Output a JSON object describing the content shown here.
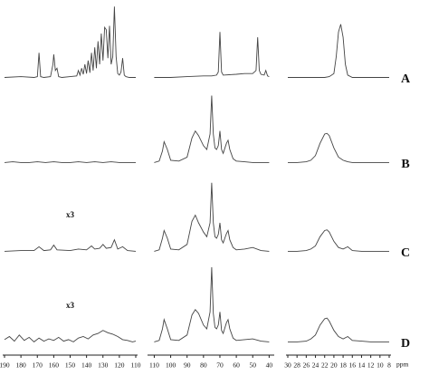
{
  "chart_data": [
    {
      "type": "line",
      "xlim": [
        190,
        110
      ],
      "xticks": [
        190,
        180,
        170,
        160,
        150,
        140,
        130,
        120,
        110
      ],
      "ylim": [
        0,
        100
      ],
      "color": "#444",
      "annotations": [
        {
          "text": "x3",
          "series": 2
        },
        {
          "text": "x3",
          "series": 3
        }
      ],
      "series": [
        {
          "x": [
            190,
            180,
            172,
            170,
            169,
            168,
            166,
            162,
            160.5,
            160,
            159,
            158,
            157,
            155,
            150,
            146,
            145,
            144,
            143,
            142,
            141,
            140,
            139,
            138,
            137,
            136,
            135,
            134,
            133,
            132,
            131,
            130,
            129,
            128,
            127,
            126,
            125,
            124,
            123,
            122,
            121,
            120,
            119,
            118,
            117,
            116,
            114,
            110
          ],
          "values": [
            3,
            4,
            3,
            4,
            35,
            4,
            3,
            4,
            20,
            33,
            12,
            15,
            4,
            3,
            4,
            5,
            12,
            6,
            15,
            7,
            20,
            8,
            25,
            9,
            35,
            12,
            42,
            15,
            50,
            20,
            60,
            25,
            68,
            65,
            28,
            70,
            20,
            30,
            95,
            30,
            8,
            6,
            10,
            28,
            6,
            4,
            3,
            3
          ]
        },
        {
          "x": [
            190,
            185,
            180,
            175,
            170,
            165,
            160,
            155,
            150,
            145,
            140,
            135,
            130,
            125,
            120,
            115,
            110
          ],
          "values": [
            3,
            4,
            3,
            3,
            4,
            3,
            4,
            3,
            3,
            4,
            3,
            4,
            3,
            4,
            3,
            3,
            3
          ]
        },
        {
          "x": [
            190,
            180,
            172,
            169,
            166,
            162,
            160,
            158,
            150,
            145,
            140,
            137,
            135,
            132,
            130,
            128,
            125,
            123,
            121,
            118,
            115,
            110
          ],
          "values": [
            3,
            4,
            4,
            9,
            4,
            5,
            11,
            5,
            4,
            6,
            5,
            10,
            6,
            7,
            12,
            7,
            8,
            18,
            6,
            9,
            4,
            3
          ]
        },
        {
          "x": [
            190,
            187,
            184,
            181,
            178,
            175,
            172,
            169,
            166,
            163,
            160,
            157,
            154,
            151,
            148,
            145,
            142,
            139,
            136,
            133,
            130,
            127,
            124,
            121,
            118,
            115,
            112,
            110
          ],
          "values": [
            6,
            10,
            4,
            12,
            5,
            9,
            3,
            8,
            4,
            7,
            5,
            9,
            4,
            6,
            3,
            8,
            10,
            7,
            12,
            14,
            18,
            15,
            13,
            10,
            6,
            5,
            3,
            4
          ]
        }
      ]
    },
    {
      "type": "line",
      "xlim": [
        113,
        38
      ],
      "xticks": [
        110,
        100,
        90,
        80,
        70,
        60,
        50,
        40
      ],
      "ylim": [
        0,
        100
      ],
      "color": "#444",
      "series": [
        {
          "x": [
            110,
            100,
            90,
            80,
            75,
            72,
            71,
            70,
            69,
            68,
            60,
            55,
            50,
            48,
            47,
            46,
            45,
            43,
            42,
            41,
            40
          ],
          "values": [
            3,
            3,
            4,
            5,
            5,
            6,
            10,
            62,
            10,
            6,
            7,
            8,
            8,
            12,
            55,
            12,
            7,
            6,
            12,
            5,
            4
          ]
        },
        {
          "x": [
            110,
            107,
            105,
            104,
            102,
            100,
            95,
            90,
            87,
            85,
            83,
            80,
            78,
            76,
            75,
            74,
            73,
            72,
            71,
            70,
            69,
            68,
            66,
            65,
            64,
            62,
            60,
            55,
            50,
            45,
            40
          ],
          "values": [
            3,
            5,
            18,
            30,
            20,
            6,
            5,
            10,
            35,
            44,
            38,
            25,
            20,
            40,
            90,
            40,
            22,
            20,
            25,
            44,
            20,
            15,
            28,
            32,
            20,
            8,
            5,
            4,
            3,
            3,
            3
          ]
        },
        {
          "x": [
            110,
            107,
            105,
            104,
            102,
            100,
            95,
            90,
            87,
            85,
            83,
            80,
            78,
            76,
            75,
            74,
            73,
            72,
            71,
            70,
            69,
            68,
            66,
            65,
            64,
            62,
            60,
            55,
            50,
            45,
            40
          ],
          "values": [
            3,
            5,
            20,
            30,
            20,
            6,
            5,
            12,
            42,
            50,
            40,
            28,
            22,
            40,
            92,
            40,
            22,
            20,
            25,
            40,
            18,
            14,
            26,
            30,
            18,
            8,
            5,
            6,
            8,
            4,
            3
          ]
        },
        {
          "x": [
            110,
            107,
            105,
            104,
            102,
            100,
            95,
            90,
            87,
            85,
            83,
            80,
            78,
            76,
            75,
            74,
            73,
            72,
            71,
            70,
            69,
            68,
            66,
            65,
            64,
            62,
            60,
            55,
            50,
            45,
            40
          ],
          "values": [
            3,
            5,
            20,
            32,
            20,
            6,
            5,
            12,
            38,
            45,
            40,
            25,
            20,
            42,
            100,
            40,
            22,
            20,
            25,
            42,
            18,
            14,
            28,
            32,
            20,
            8,
            5,
            6,
            7,
            4,
            3
          ]
        }
      ]
    },
    {
      "type": "line",
      "xlim": [
        30,
        8
      ],
      "xticks": [
        30,
        28,
        26,
        24,
        22,
        20,
        18,
        16,
        14,
        12,
        10,
        8
      ],
      "xlabel": "ppm",
      "ylim": [
        0,
        100
      ],
      "color": "#444",
      "series": [
        {
          "x": [
            30,
            28,
            26,
            24,
            22,
            21,
            20,
            19.5,
            19,
            18.5,
            18,
            17.5,
            17,
            16,
            14,
            12,
            10,
            8
          ],
          "values": [
            3,
            3,
            3,
            3,
            3,
            4,
            8,
            30,
            62,
            72,
            55,
            20,
            6,
            3,
            3,
            3,
            3,
            3
          ]
        },
        {
          "x": [
            30,
            28,
            26,
            25,
            24,
            23,
            22,
            21.5,
            21,
            20,
            19,
            18,
            17,
            16,
            14,
            12,
            10,
            8
          ],
          "values": [
            3,
            3,
            4,
            6,
            12,
            28,
            40,
            41,
            38,
            22,
            10,
            6,
            4,
            3,
            3,
            3,
            3,
            3
          ]
        },
        {
          "x": [
            30,
            28,
            26,
            25,
            24,
            23,
            22,
            21.5,
            21,
            20,
            19,
            18,
            17,
            16,
            14,
            12,
            10,
            8
          ],
          "values": [
            3,
            3,
            4,
            6,
            10,
            22,
            30,
            31,
            28,
            16,
            8,
            6,
            9,
            4,
            3,
            3,
            3,
            3
          ]
        },
        {
          "x": [
            30,
            28,
            26,
            25,
            24,
            23,
            22,
            21.5,
            21,
            20,
            19,
            18,
            17,
            16,
            14,
            12,
            10,
            8
          ],
          "values": [
            3,
            3,
            4,
            7,
            12,
            25,
            33,
            34,
            30,
            18,
            10,
            7,
            10,
            5,
            4,
            3,
            3,
            3
          ]
        }
      ]
    }
  ],
  "row_labels": [
    "A",
    "B",
    "C",
    "D"
  ]
}
